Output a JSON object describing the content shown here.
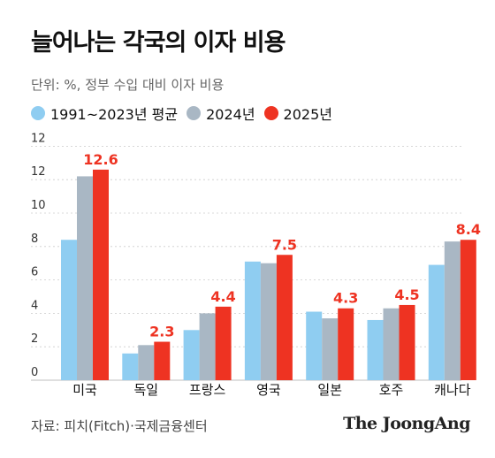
{
  "header": {
    "title": "늘어나는 각국의 이자 비용",
    "subtitle": "단위: %, 정부 수입 대비 이자 비용"
  },
  "footer": {
    "source": "자료: 피치(Fitch)·국제금융센터",
    "brand": "The JoongAng"
  },
  "colors": {
    "series1": "#8fcdf1",
    "series2": "#a9b7c4",
    "series3": "#ee3322",
    "grid": "#cccccc"
  },
  "chart_data": {
    "type": "bar",
    "categories": [
      "미국",
      "독일",
      "프랑스",
      "영국",
      "일본",
      "호주",
      "캐나다"
    ],
    "series": [
      {
        "name": "1991~2023년 평균",
        "values": [
          8.4,
          1.6,
          3.0,
          7.1,
          4.1,
          3.6,
          6.9
        ]
      },
      {
        "name": "2024년",
        "values": [
          12.2,
          2.1,
          4.0,
          7.0,
          3.7,
          4.3,
          8.3
        ]
      },
      {
        "name": "2025년",
        "values": [
          12.6,
          2.3,
          4.4,
          7.5,
          4.3,
          4.5,
          8.4
        ]
      }
    ],
    "data_labels": [
      "12.6",
      "2.3",
      "4.4",
      "7.5",
      "4.3",
      "4.5",
      "8.4"
    ],
    "y_ticks": [
      "0",
      "2",
      "4",
      "6",
      "8",
      "10",
      "12",
      "12"
    ],
    "ylim": [
      0,
      14
    ],
    "grid": true,
    "legend": "top-left"
  }
}
